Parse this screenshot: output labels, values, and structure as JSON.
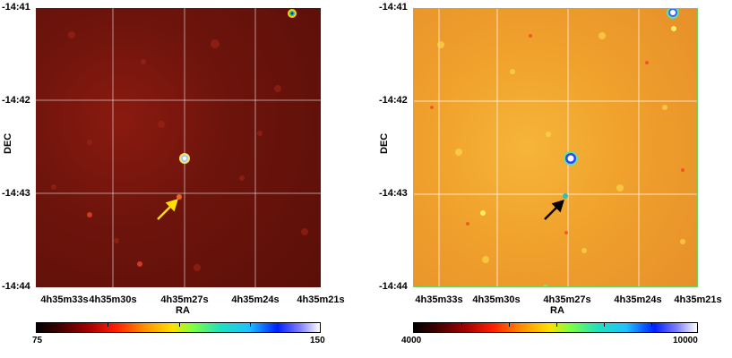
{
  "panels": [
    {
      "axes": {
        "ylabel": "DEC",
        "xlabel": "RA",
        "yticks": [
          "-14:41",
          "-14:42",
          "-14:43",
          "-14:44"
        ],
        "xticks": [
          "4h35m33s",
          "4h35m30s",
          "4h35m27s",
          "4h35m24s",
          "4h35m21s"
        ]
      },
      "colorbar": {
        "min": "75",
        "max": "150"
      },
      "arrow_color": "#ffe000"
    },
    {
      "axes": {
        "ylabel": "DEC",
        "xlabel": "RA",
        "yticks": [
          "-14:41",
          "-14:42",
          "-14:43",
          "-14:44"
        ],
        "xticks": [
          "4h35m33s",
          "4h35m30s",
          "4h35m27s",
          "4h35m24s",
          "4h35m21s"
        ]
      },
      "colorbar": {
        "min": "4000",
        "max": "10000"
      },
      "arrow_color": "#000000"
    }
  ]
}
